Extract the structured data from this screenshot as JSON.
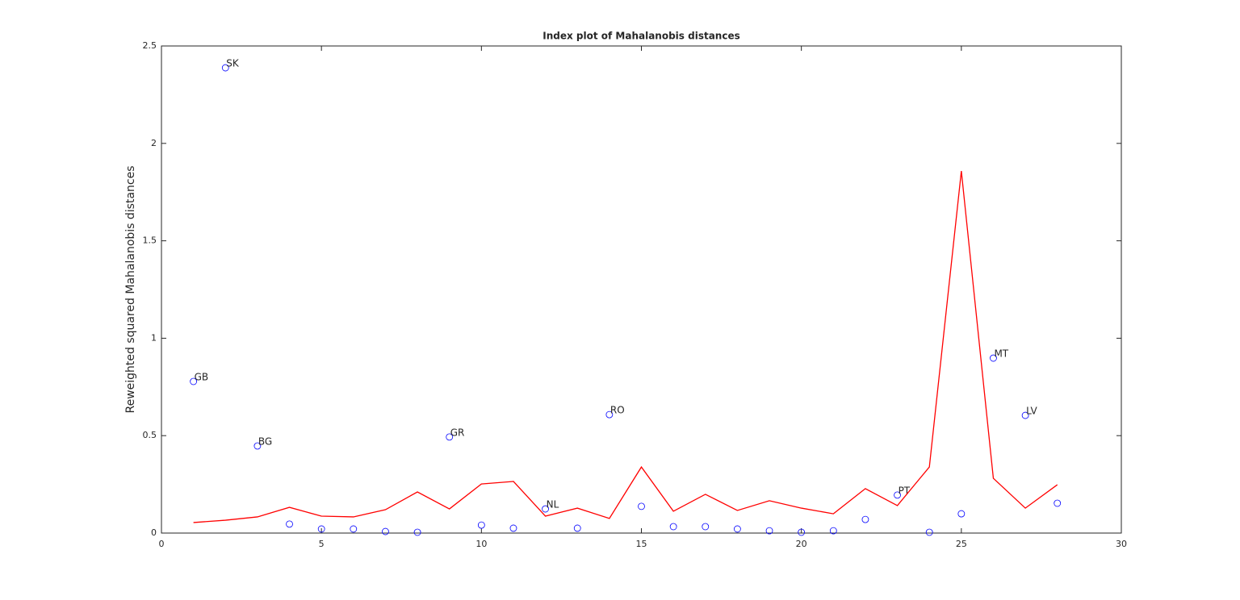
{
  "chart_data": {
    "type": "scatter",
    "title": "Index plot of Mahalanobis distances",
    "y_label": "Reweighted squared Mahalanobis distances",
    "x": [
      1,
      2,
      3,
      4,
      5,
      6,
      7,
      8,
      9,
      10,
      11,
      12,
      13,
      14,
      15,
      16,
      17,
      18,
      19,
      20,
      21,
      22,
      23,
      24,
      25,
      26,
      27,
      28
    ],
    "series": [
      {
        "type": "scatter",
        "color": "#0000ff",
        "values": [
          0.778,
          2.388,
          0.447,
          0.046,
          0.021,
          0.021,
          0.008,
          0.004,
          0.493,
          0.041,
          0.025,
          0.124,
          0.025,
          0.608,
          0.137,
          0.033,
          0.033,
          0.021,
          0.012,
          0.004,
          0.012,
          0.07,
          0.195,
          0.004,
          0.099,
          0.898,
          0.604,
          0.153
        ],
        "point_labels": [
          "GB",
          "SK",
          "BG",
          null,
          null,
          null,
          null,
          null,
          "GR",
          null,
          null,
          "NL",
          null,
          "RO",
          null,
          null,
          null,
          null,
          null,
          null,
          null,
          null,
          "PT",
          null,
          null,
          "MT",
          "LV",
          null
        ]
      },
      {
        "type": "line",
        "color": "#ff0000",
        "values": [
          0.054,
          0.066,
          0.083,
          0.132,
          0.087,
          0.083,
          0.12,
          0.211,
          0.124,
          0.252,
          0.265,
          0.087,
          0.128,
          0.075,
          0.339,
          0.112,
          0.199,
          0.116,
          0.166,
          0.128,
          0.099,
          0.228,
          0.141,
          0.339,
          1.858,
          0.281,
          0.128,
          0.248
        ]
      }
    ],
    "xlim": [
      0,
      30
    ],
    "xticks": [
      0,
      5,
      10,
      15,
      20,
      25,
      30
    ],
    "ylim": [
      0,
      2.5
    ],
    "yticks": [
      0,
      0.5,
      1,
      1.5,
      2,
      2.5
    ],
    "grid": false
  }
}
